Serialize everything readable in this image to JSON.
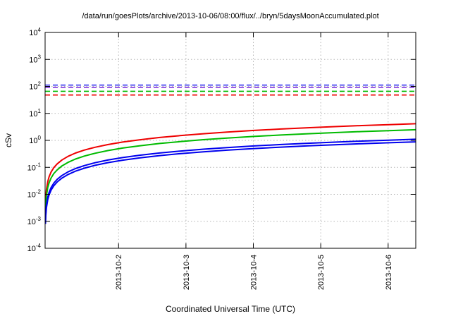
{
  "chart_data": {
    "type": "line",
    "title": "/data/run/goesPlots/archive/2013-10-06/08:00/flux/../bryn/5daysMoonAccumulated.plot",
    "xlabel": "Coordinated Universal Time (UTC)",
    "ylabel": "cSv",
    "y_scale": "log10",
    "y_exponent_range": [
      -4,
      4
    ],
    "y_tick_exponents": [
      4,
      3,
      2,
      1,
      0,
      -1,
      -2,
      -3,
      -4
    ],
    "x_range_days": [
      0,
      5.5
    ],
    "x_ticks": [
      {
        "label": "2013-10-2",
        "x": 1.09
      },
      {
        "label": "2013-10-3",
        "x": 2.09
      },
      {
        "label": "2013-10-4",
        "x": 3.09
      },
      {
        "label": "2013-10-5",
        "x": 4.09
      },
      {
        "label": "2013-10-6",
        "x": 5.09
      }
    ],
    "grid": {
      "color": "#b5b5b5",
      "style": "dotted"
    },
    "x_days": [
      0.005,
      0.01,
      0.02,
      0.04,
      0.06,
      0.09,
      0.13,
      0.18,
      0.25,
      0.34,
      0.45,
      0.58,
      0.74,
      0.93,
      1.15,
      1.4,
      1.7,
      2.0,
      2.35,
      2.7,
      3.1,
      3.5,
      3.9,
      4.3,
      4.7,
      5.1,
      5.5
    ],
    "series": [
      {
        "name": "accumulated-dose-red",
        "color": "#ee0000",
        "style": "solid",
        "values": [
          0.0038,
          0.0075,
          0.015,
          0.03,
          0.045,
          0.068,
          0.098,
          0.135,
          0.188,
          0.255,
          0.338,
          0.435,
          0.555,
          0.698,
          0.863,
          1.05,
          1.28,
          1.5,
          1.76,
          2.03,
          2.33,
          2.63,
          2.93,
          3.23,
          3.53,
          3.83,
          4.13
        ]
      },
      {
        "name": "accumulated-dose-green",
        "color": "#00bb00",
        "style": "solid",
        "values": [
          0.0023,
          0.0045,
          0.009,
          0.018,
          0.027,
          0.041,
          0.059,
          0.081,
          0.113,
          0.153,
          0.203,
          0.261,
          0.333,
          0.419,
          0.518,
          0.63,
          0.765,
          0.9,
          1.06,
          1.22,
          1.4,
          1.58,
          1.76,
          1.94,
          2.12,
          2.3,
          2.48
        ]
      },
      {
        "name": "accumulated-dose-blue-upper",
        "color": "#0000ee",
        "style": "solid",
        "values": [
          0.001,
          0.002,
          0.004,
          0.008,
          0.012,
          0.018,
          0.026,
          0.036,
          0.05,
          0.068,
          0.09,
          0.116,
          0.148,
          0.186,
          0.23,
          0.28,
          0.34,
          0.4,
          0.47,
          0.54,
          0.62,
          0.7,
          0.78,
          0.86,
          0.94,
          1.02,
          1.1
        ]
      },
      {
        "name": "accumulated-dose-blue-lower",
        "color": "#0000ee",
        "style": "solid",
        "values": [
          0.0008,
          0.0016,
          0.0032,
          0.0064,
          0.0096,
          0.0144,
          0.0208,
          0.0288,
          0.04,
          0.0544,
          0.072,
          0.0928,
          0.1184,
          0.1488,
          0.184,
          0.224,
          0.272,
          0.32,
          0.376,
          0.432,
          0.496,
          0.56,
          0.624,
          0.688,
          0.752,
          0.816,
          0.88
        ]
      }
    ],
    "limit_lines": [
      {
        "name": "limit-blue",
        "color": "#2222ee",
        "style": "dashed",
        "value": 112
      },
      {
        "name": "limit-violet",
        "color": "#7722dd",
        "style": "dashed",
        "value": 92
      },
      {
        "name": "limit-green",
        "color": "#00bb00",
        "style": "dashed",
        "value": 66
      },
      {
        "name": "limit-red",
        "color": "#ee0000",
        "style": "dashed",
        "value": 48
      }
    ]
  }
}
